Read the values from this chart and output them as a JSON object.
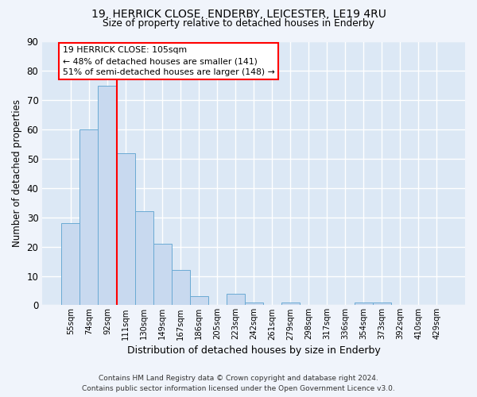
{
  "title1": "19, HERRICK CLOSE, ENDERBY, LEICESTER, LE19 4RU",
  "title2": "Size of property relative to detached houses in Enderby",
  "xlabel": "Distribution of detached houses by size in Enderby",
  "ylabel": "Number of detached properties",
  "footer1": "Contains HM Land Registry data © Crown copyright and database right 2024.",
  "footer2": "Contains public sector information licensed under the Open Government Licence v3.0.",
  "bar_labels": [
    "55sqm",
    "74sqm",
    "92sqm",
    "111sqm",
    "130sqm",
    "149sqm",
    "167sqm",
    "186sqm",
    "205sqm",
    "223sqm",
    "242sqm",
    "261sqm",
    "279sqm",
    "298sqm",
    "317sqm",
    "336sqm",
    "354sqm",
    "373sqm",
    "392sqm",
    "410sqm",
    "429sqm"
  ],
  "bar_values": [
    28,
    60,
    75,
    52,
    32,
    21,
    12,
    3,
    0,
    4,
    1,
    0,
    1,
    0,
    0,
    0,
    1,
    1,
    0,
    0,
    0
  ],
  "bar_color": "#c8d9ef",
  "bar_edge_color": "#6aaad4",
  "ylim": [
    0,
    90
  ],
  "yticks": [
    0,
    10,
    20,
    30,
    40,
    50,
    60,
    70,
    80,
    90
  ],
  "vline_x": 2.5,
  "vline_color": "red",
  "annotation_text": "19 HERRICK CLOSE: 105sqm\n← 48% of detached houses are smaller (141)\n51% of semi-detached houses are larger (148) →",
  "background_color": "#f0f4fb",
  "plot_background": "#dce8f5"
}
